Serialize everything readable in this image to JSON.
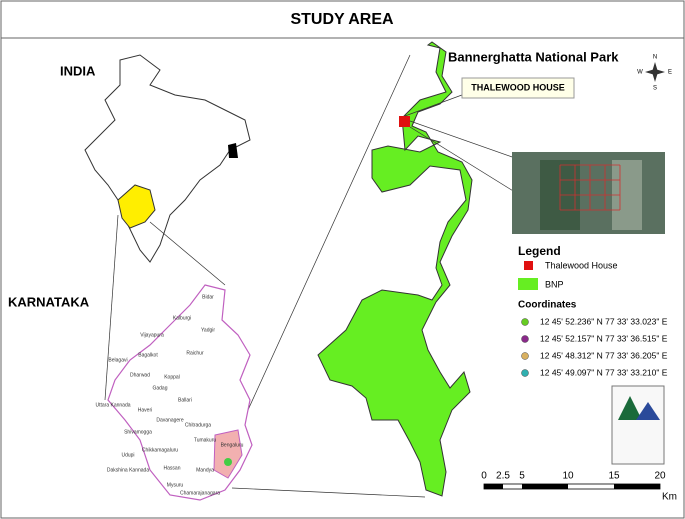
{
  "header": {
    "title": "STUDY AREA"
  },
  "india": {
    "label": "INDIA"
  },
  "karnataka": {
    "label": "KARNATAKA",
    "districts": [
      "Bidar",
      "Kalburgi",
      "Vijayapura",
      "Yadgir",
      "Belagavi",
      "Bagalkot",
      "Raichur",
      "Koppal",
      "Dharwad",
      "Gadag",
      "Uttara Kannada",
      "Haveri",
      "Ballari",
      "Shivamogga",
      "Davanagere",
      "Chitradurga",
      "Udupi",
      "Chikkamagaluru",
      "Tumakuru",
      "Bengaluru",
      "Dakshina Kannada",
      "Hassan",
      "Mandya",
      "Mysuru",
      "Chamarajanagara"
    ]
  },
  "park": {
    "title": "Bannerghatta National Park",
    "callout": "THALEWOOD HOUSE"
  },
  "compass": {
    "n": "N",
    "s": "S",
    "e": "E",
    "w": "W"
  },
  "legend": {
    "title": "Legend",
    "items": [
      "Thalewood House",
      "BNP"
    ],
    "coordinates_title": "Coordinates",
    "coordinates": [
      "12 45' 52.236\" N 77 33' 33.023\" E",
      "12 45' 52.157\" N 77 33' 36.515\" E",
      "12 45' 48.312\" N 77 33' 36.205\" E",
      "12 45' 49.097\" N 77 33' 33.210\" E"
    ]
  },
  "scale": {
    "ticks": [
      "0",
      "2.5",
      "5",
      "10",
      "15",
      "20"
    ],
    "unit": "Km"
  }
}
